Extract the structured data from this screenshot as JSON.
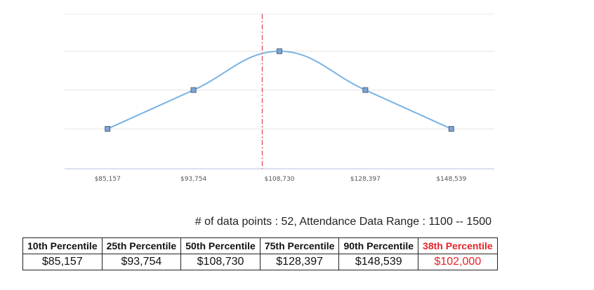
{
  "chart_data": {
    "type": "line",
    "categories": [
      "$85,157",
      "$93,754",
      "$108,730",
      "$128,397",
      "$148,539"
    ],
    "values": [
      1,
      2,
      3,
      2,
      1
    ],
    "ylim": [
      -0.03,
      3.96
    ],
    "grid": true,
    "marker_line_at": 2.8,
    "series_color": "#7ab3e3",
    "marker_line_color": "#e24b5b"
  },
  "summary": "# of data points : 52, Attendance Data Range : 1100 -- 1500",
  "table": {
    "headers": [
      "10th Percentile",
      "25th Percentile",
      "50th Percentile",
      "75th Percentile",
      "90th Percentile",
      "38th Percentile"
    ],
    "values": [
      "$85,157",
      "$93,754",
      "$108,730",
      "$128,397",
      "$148,539",
      "$102,000"
    ],
    "highlight_color": "#e8242a"
  }
}
